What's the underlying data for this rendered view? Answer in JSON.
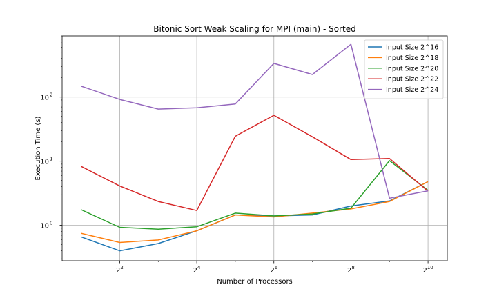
{
  "chart_data": {
    "type": "line",
    "title": "Bitonic Sort Weak Scaling for MPI (main) - Sorted",
    "xlabel": "Number of Processors",
    "ylabel": "Execution Time (s)",
    "x_scale": "log2",
    "y_scale": "log10",
    "xlim": [
      1.42,
      1448
    ],
    "ylim": [
      0.28,
      900
    ],
    "grid": true,
    "legend_position": "upper-right",
    "x": [
      2,
      4,
      8,
      16,
      32,
      64,
      128,
      256,
      512,
      1024
    ],
    "x_ticks": [
      {
        "value": 4,
        "base": "2",
        "exp": "2"
      },
      {
        "value": 16,
        "base": "2",
        "exp": "4"
      },
      {
        "value": 64,
        "base": "2",
        "exp": "6"
      },
      {
        "value": 256,
        "base": "2",
        "exp": "8"
      },
      {
        "value": 1024,
        "base": "2",
        "exp": "10"
      }
    ],
    "y_ticks": [
      {
        "value": 1,
        "base": "10",
        "exp": "0"
      },
      {
        "value": 10,
        "base": "10",
        "exp": "1"
      },
      {
        "value": 100,
        "base": "10",
        "exp": "2"
      }
    ],
    "series": [
      {
        "name": "Input Size 2^16",
        "color": "#1f77b4",
        "values": [
          0.66,
          0.4,
          0.52,
          0.82,
          1.45,
          1.4,
          1.45,
          2.0,
          2.4,
          4.8
        ]
      },
      {
        "name": "Input Size 2^18",
        "color": "#ff7f0e",
        "values": [
          0.75,
          0.54,
          0.59,
          0.82,
          1.45,
          1.35,
          1.55,
          1.8,
          2.35,
          4.8
        ]
      },
      {
        "name": "Input Size 2^20",
        "color": "#2ca02c",
        "values": [
          1.75,
          0.93,
          0.87,
          0.95,
          1.55,
          1.4,
          1.5,
          1.85,
          10.2,
          3.5
        ]
      },
      {
        "name": "Input Size 2^22",
        "color": "#d62728",
        "values": [
          8.3,
          4.1,
          2.35,
          1.7,
          24.5,
          52.0,
          24.0,
          10.6,
          11.0,
          3.4
        ]
      },
      {
        "name": "Input Size 2^24",
        "color": "#9467bd",
        "values": [
          148,
          92,
          65,
          68,
          78,
          335,
          225,
          665,
          2.65,
          3.45
        ]
      }
    ]
  }
}
